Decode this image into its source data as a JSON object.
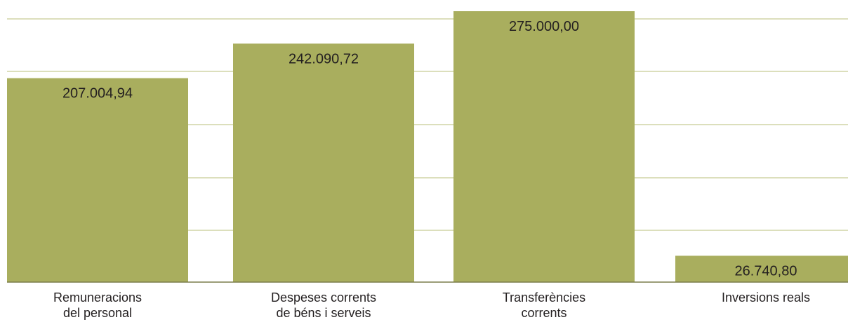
{
  "chart_data": {
    "type": "bar",
    "categories": [
      [
        "Remuneracions",
        "del personal"
      ],
      [
        "Despeses corrents",
        "de béns i serveis"
      ],
      [
        "Transferències",
        "corrents"
      ],
      [
        "Inversions reals"
      ]
    ],
    "values": [
      207004.94,
      242090.72,
      275000.0,
      26740.8
    ],
    "value_labels": [
      "207.004,94",
      "242.090,72",
      "275.000,00",
      "26.740,80"
    ],
    "title": "",
    "xlabel": "",
    "ylabel": "",
    "ylim": [
      0,
      275000
    ],
    "grid": true,
    "legend": "none",
    "bar_color": "#a9ae5e",
    "grid_color": "#c8cc94",
    "axis_color": "#7a7d4a"
  }
}
